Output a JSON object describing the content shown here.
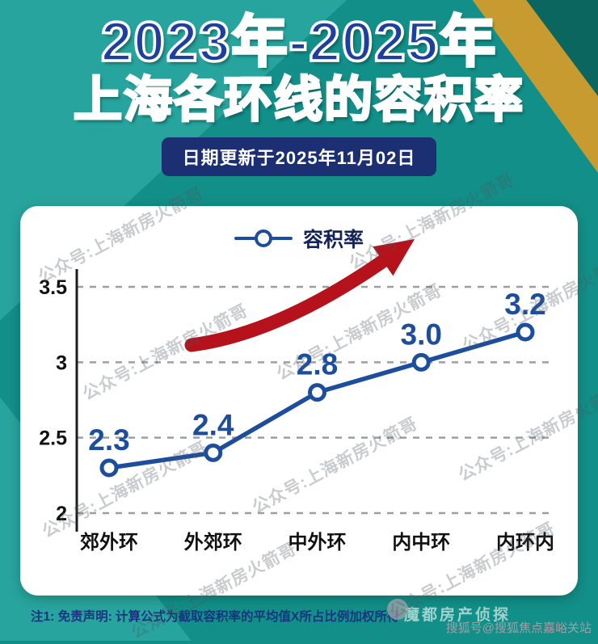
{
  "page": {
    "title_line1": "2023年-2025年",
    "title_line2": "上海各环线的容积率",
    "date_badge": "日期更新于2025年11月02日",
    "footer_note": "注1: 免责声明: 计算公式为截取容积率的平均值X所占比例加权所得",
    "watermark_text": "公众号:上海新房火箭哥",
    "faint_watermark": "魔都房产侦探",
    "sohu_watermark": "搜狐号@搜狐焦点嘉峪关站"
  },
  "legend": {
    "label": "容积率"
  },
  "chart_data": {
    "type": "line",
    "title": "2023年-2025年上海各环线的容积率",
    "categories": [
      "郊外环",
      "外郊环",
      "中外环",
      "内中环",
      "内环内"
    ],
    "series": [
      {
        "name": "容积率",
        "values": [
          2.3,
          2.4,
          2.8,
          3.0,
          3.2
        ]
      }
    ],
    "point_labels": [
      "2.3",
      "2.4",
      "2.8",
      "3.0",
      "3.2"
    ],
    "yticks": [
      3.5,
      3,
      2.5,
      2
    ],
    "ylim": [
      2,
      3.7
    ],
    "xlabel": "",
    "ylabel": "",
    "grid": "horizontal-dashed",
    "legend_position": "top-center",
    "annotations": [
      "red upward trend arrow"
    ]
  },
  "colors": {
    "background_teal": "#128f88",
    "light_teal_wedge": "#27a49d",
    "dark_teal_wedge": "#0a665f",
    "yellow_wedge": "#c79b2f",
    "title_navy": "#1e3f9e",
    "badge_navy": "#1b2f72",
    "line_blue": "#1d4e9e",
    "arrow_red": "#b5121b",
    "grid_gray": "#9aa0a0"
  }
}
